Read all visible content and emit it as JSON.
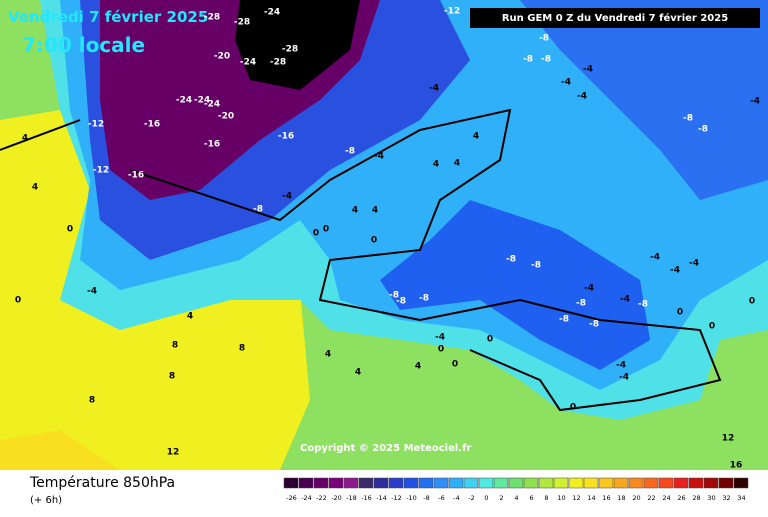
{
  "header": {
    "date": "Vendredi 7 février 2025",
    "time": "7:00 locale",
    "run": "Run GEM 0 Z du Vendredi 7 février 2025"
  },
  "copyright": "Copyright © 2025 Meteociel.fr",
  "footer": {
    "title": "Température 850hPa",
    "subtitle": "(+ 6h)"
  },
  "legend": {
    "ticks": [
      -26,
      -24,
      -22,
      -20,
      -18,
      -16,
      -14,
      -12,
      -10,
      -8,
      -6,
      -4,
      -2,
      0,
      2,
      4,
      6,
      8,
      10,
      12,
      14,
      16,
      18,
      20,
      22,
      24,
      26,
      28,
      30,
      32,
      34
    ],
    "colors": [
      "#2a0030",
      "#4a0050",
      "#660066",
      "#7a007a",
      "#8c1a8c",
      "#3a2a6a",
      "#2c2c9c",
      "#2a3cc8",
      "#2050e0",
      "#2070f0",
      "#3090f8",
      "#30b0f8",
      "#40d0f0",
      "#50e8e0",
      "#60e8a0",
      "#70e070",
      "#90e050",
      "#b0e840",
      "#d0f030",
      "#f0f020",
      "#f8e020",
      "#f8c820",
      "#f8a820",
      "#f88820",
      "#f86820",
      "#f84820",
      "#e82020",
      "#c81010",
      "#a00808",
      "#700000",
      "#300000"
    ]
  },
  "isotherm_labels": [
    -28,
    -28,
    -24,
    -20,
    -24,
    -28,
    -28,
    -24,
    -24,
    -24,
    -20,
    -12,
    -16,
    -16,
    -16,
    -12,
    -16,
    -8,
    -4,
    -8,
    -4,
    -4,
    -12,
    -8,
    -8,
    -8,
    -4,
    -4,
    -4,
    -8,
    -8,
    -4,
    -8,
    -8,
    -8,
    -8,
    -8,
    -8,
    -8,
    -4,
    -4,
    -4,
    -4,
    -8,
    -4,
    -4,
    -4,
    0,
    0,
    4,
    -4,
    4,
    4,
    4,
    4,
    4,
    0,
    0,
    0,
    4,
    4,
    8,
    8,
    8,
    8,
    12,
    12,
    16,
    0,
    0,
    4,
    4,
    0,
    0,
    4,
    0,
    0,
    0,
    -4,
    -8
  ]
}
